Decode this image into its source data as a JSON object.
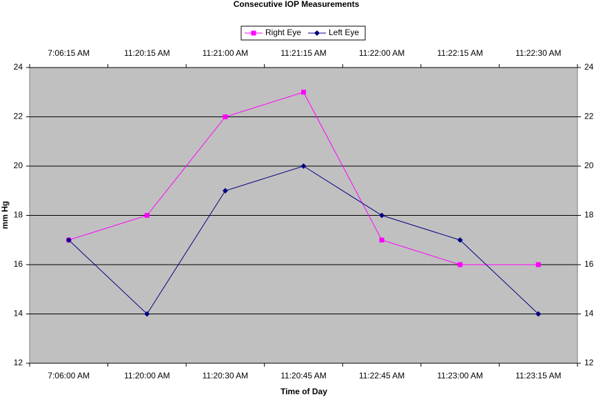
{
  "chart_data": {
    "type": "line",
    "title": "Consecutive IOP Measurements",
    "x_label": "Time of Day",
    "y_label": "mm Hg",
    "categories": [
      "7:06:00 AM",
      "11:20:00 AM",
      "11:20:30 AM",
      "11:20:45 AM",
      "11:22:45 AM",
      "11:23:00 AM",
      "11:23:15 AM"
    ],
    "x2categories": [
      "7:06:15 AM",
      "11:20:15 AM",
      "11:21:00 AM",
      "11:21:15 AM",
      "11:22:00 AM",
      "11:22:15 AM",
      "11:22:30 AM"
    ],
    "series": [
      {
        "name": "Right Eye",
        "color": "#ff00ff",
        "marker": "square",
        "axis": "y2",
        "values": [
          17,
          18,
          22,
          23,
          17,
          16,
          16
        ]
      },
      {
        "name": "Left Eye",
        "color": "#000080",
        "marker": "diamond",
        "values": [
          17,
          14,
          19,
          20,
          18,
          17,
          14
        ]
      }
    ],
    "ylim": [
      12,
      24
    ],
    "yticks": [
      12,
      14,
      16,
      18,
      20,
      22,
      24
    ],
    "y2lim": [
      12,
      24
    ],
    "y2ticks": [
      12,
      14,
      16,
      18,
      20,
      22,
      24
    ],
    "grid": true,
    "legend": "top",
    "plot_background": "#c0c0c0"
  }
}
